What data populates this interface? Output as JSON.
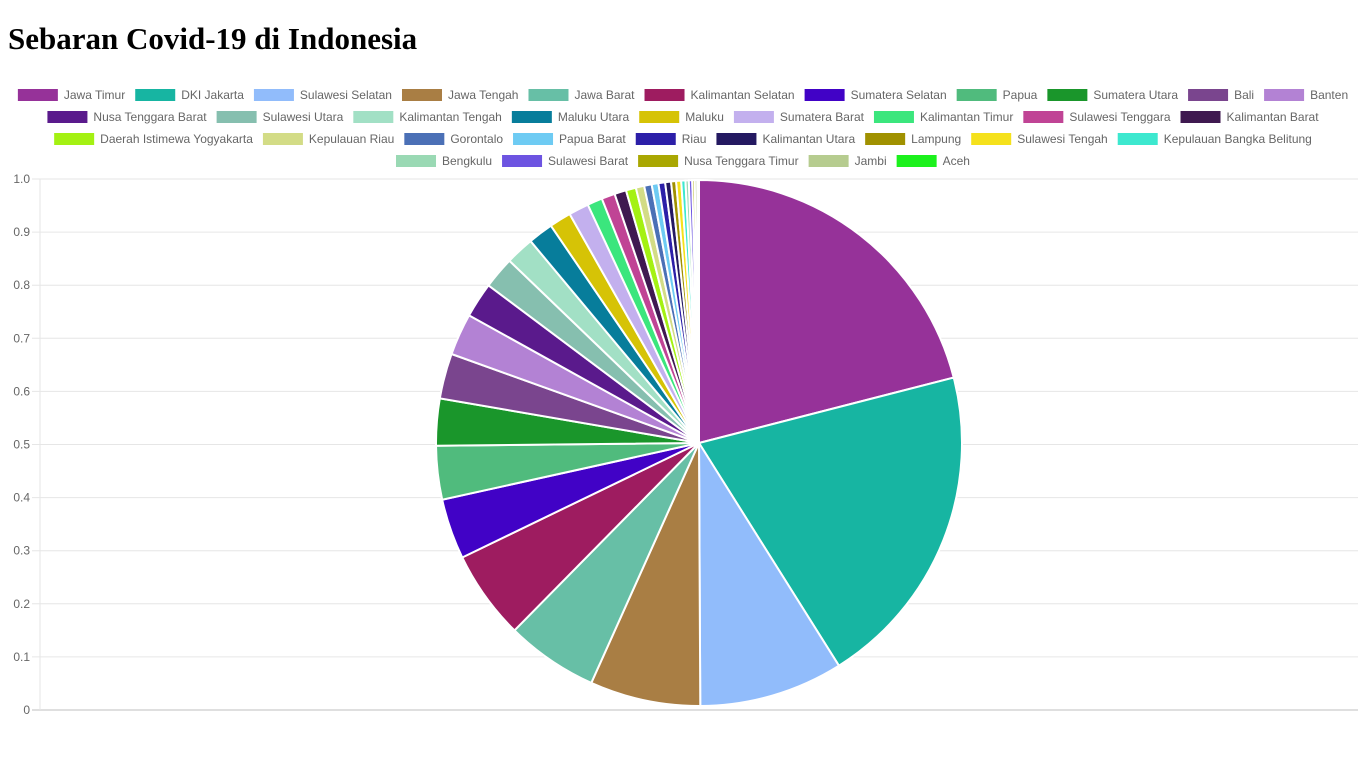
{
  "page": {
    "title": "Sebaran Covid-19 di Indonesia"
  },
  "chart_data": {
    "type": "pie",
    "title": "",
    "y_axis_ticks": [
      "0",
      "0.1",
      "0.2",
      "0.3",
      "0.4",
      "0.5",
      "0.6",
      "0.7",
      "0.8",
      "0.9",
      "1.0"
    ],
    "grid": true,
    "legend_position": "top",
    "slices": [
      {
        "label": "Jawa Timur",
        "value": 20.4,
        "color": "#963299"
      },
      {
        "label": "DKI Jakarta",
        "value": 19.5,
        "color": "#17b5a2"
      },
      {
        "label": "Sulawesi Selatan",
        "value": 8.6,
        "color": "#91bcfb"
      },
      {
        "label": "Jawa Tengah",
        "value": 6.6,
        "color": "#a97e44"
      },
      {
        "label": "Jawa Barat",
        "value": 5.5,
        "color": "#67bfa6"
      },
      {
        "label": "Kalimantan Selatan",
        "value": 5.3,
        "color": "#9e1c60"
      },
      {
        "label": "Sumatera Selatan",
        "value": 3.6,
        "color": "#4102c6"
      },
      {
        "label": "Papua",
        "value": 3.2,
        "color": "#50bb7d"
      },
      {
        "label": "Sumatera Utara",
        "value": 2.8,
        "color": "#1a962b"
      },
      {
        "label": "Bali",
        "value": 2.7,
        "color": "#7a458e"
      },
      {
        "label": "Banten",
        "value": 2.5,
        "color": "#b382d4"
      },
      {
        "label": "Nusa Tenggara Barat",
        "value": 2.1,
        "color": "#5a1a8c"
      },
      {
        "label": "Sulawesi Utara",
        "value": 1.9,
        "color": "#86bfaf"
      },
      {
        "label": "Kalimantan Tengah",
        "value": 1.7,
        "color": "#a2e0c5"
      },
      {
        "label": "Maluku Utara",
        "value": 1.5,
        "color": "#077d9b"
      },
      {
        "label": "Maluku",
        "value": 1.3,
        "color": "#d6c306"
      },
      {
        "label": "Sumatera Barat",
        "value": 1.2,
        "color": "#c3b0ee"
      },
      {
        "label": "Kalimantan Timur",
        "value": 0.9,
        "color": "#3be67d"
      },
      {
        "label": "Sulawesi Tenggara",
        "value": 0.8,
        "color": "#c04495"
      },
      {
        "label": "Kalimantan Barat",
        "value": 0.7,
        "color": "#3f1950"
      },
      {
        "label": "Daerah Istimewa Yogyakarta",
        "value": 0.6,
        "color": "#a4f113"
      },
      {
        "label": "Kepulauan Riau",
        "value": 0.5,
        "color": "#d3dc86"
      },
      {
        "label": "Gorontalo",
        "value": 0.45,
        "color": "#4b70b6"
      },
      {
        "label": "Papua Barat",
        "value": 0.4,
        "color": "#6ecbf3"
      },
      {
        "label": "Riau",
        "value": 0.4,
        "color": "#2c1fa8"
      },
      {
        "label": "Kalimantan Utara",
        "value": 0.35,
        "color": "#241961"
      },
      {
        "label": "Lampung",
        "value": 0.3,
        "color": "#a09100"
      },
      {
        "label": "Sulawesi Tengah",
        "value": 0.3,
        "color": "#f5e11c"
      },
      {
        "label": "Kepulauan Bangka Belitung",
        "value": 0.25,
        "color": "#3de8cf"
      },
      {
        "label": "Bengkulu",
        "value": 0.2,
        "color": "#9ad9b4"
      },
      {
        "label": "Sulawesi Barat",
        "value": 0.2,
        "color": "#6d54e1"
      },
      {
        "label": "Nusa Tenggara Timur",
        "value": 0.15,
        "color": "#a9a702"
      },
      {
        "label": "Jambi",
        "value": 0.15,
        "color": "#b6cc8f"
      },
      {
        "label": "Aceh",
        "value": 0.1,
        "color": "#1cf11d"
      }
    ]
  }
}
